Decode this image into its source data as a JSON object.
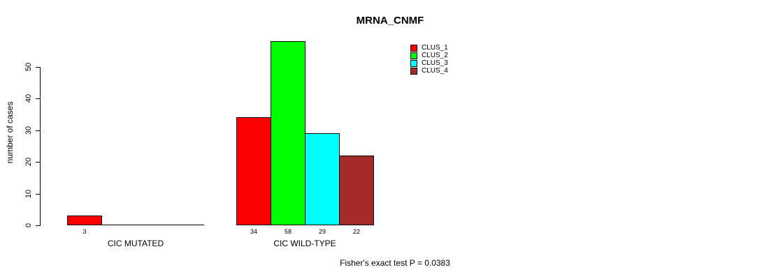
{
  "chart_data": {
    "type": "bar",
    "title": "MRNA_CNMF",
    "xlabel": "",
    "ylabel": "number of cases",
    "ylim": [
      0,
      58
    ],
    "yticks": [
      0,
      10,
      20,
      30,
      40,
      50
    ],
    "grid": false,
    "legend_position": "top-right",
    "categories": [
      "CIC MUTATED",
      "CIC WILD-TYPE"
    ],
    "series": [
      {
        "name": "CLUS_1",
        "color": "#FF0000",
        "values": [
          3,
          34
        ]
      },
      {
        "name": "CLUS_2",
        "color": "#00FF00",
        "values": [
          0,
          58
        ]
      },
      {
        "name": "CLUS_3",
        "color": "#00FFFF",
        "values": [
          0,
          29
        ]
      },
      {
        "name": "CLUS_4",
        "color": "#A52A2A",
        "values": [
          0,
          22
        ]
      }
    ],
    "bar_value_labels": {
      "CIC MUTATED": [
        3
      ],
      "CIC WILD-TYPE": [
        34,
        58,
        29,
        22
      ]
    },
    "annotation": "Fisher's exact test P = 0.0383"
  }
}
